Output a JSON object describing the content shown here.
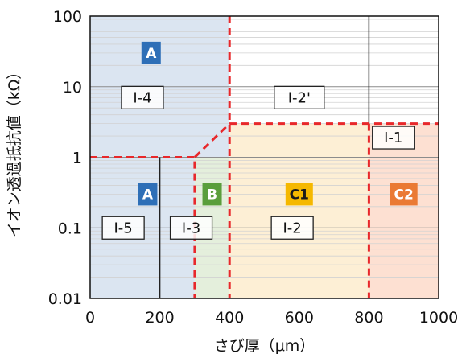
{
  "chart_data": {
    "type": "area",
    "xlabel": "さび厚（μm）",
    "ylabel": "イオン透過抵抗値（kΩ）",
    "xlim": [
      0,
      1000
    ],
    "ylim": [
      0.01,
      100
    ],
    "yscale": "log",
    "x_ticks": [
      "0",
      "200",
      "400",
      "600",
      "800",
      "1000"
    ],
    "y_ticks": [
      "0.01",
      "0.1",
      "1",
      "10",
      "100"
    ],
    "grid": "horizontal",
    "regions": [
      {
        "label": "A",
        "x_range": [
          0,
          400
        ],
        "y_range": [
          1,
          100
        ],
        "color": "#dbe5f1",
        "label_color": "#2e6fb7",
        "label_pos": [
          175,
          30
        ]
      },
      {
        "label": "A",
        "x_range": [
          0,
          300
        ],
        "y_range": [
          0.01,
          1
        ],
        "color": "#dbe5f1",
        "label_color": "#2e6fb7",
        "label_pos": [
          165,
          0.3
        ]
      },
      {
        "label": "B",
        "x_range": [
          300,
          400
        ],
        "y_range": [
          0.01,
          1
        ],
        "color": "#e4efdc",
        "label_color": "#5a9e3c",
        "label_pos": [
          350,
          0.3
        ]
      },
      {
        "label": "C1",
        "x_range": [
          400,
          800
        ],
        "y_range": [
          0.01,
          3
        ],
        "color": "#fdefd5",
        "label_color": "#f5b800",
        "label_pos": [
          600,
          0.3
        ]
      },
      {
        "label": "C2",
        "x_range": [
          800,
          1000
        ],
        "y_range": [
          0.01,
          3
        ],
        "color": "#fde0d2",
        "label_color": "#ea7a34",
        "label_pos": [
          900,
          0.3
        ]
      }
    ],
    "cases": [
      {
        "label": "Ⅰ-4",
        "pos": [
          150,
          7
        ]
      },
      {
        "label": "Ⅰ-2'",
        "pos": [
          600,
          7
        ]
      },
      {
        "label": "Ⅰ-1",
        "pos": [
          870,
          1.9
        ]
      },
      {
        "label": "Ⅰ-5",
        "pos": [
          95,
          0.1
        ]
      },
      {
        "label": "Ⅰ-3",
        "pos": [
          290,
          0.1
        ]
      },
      {
        "label": "Ⅰ-2",
        "pos": [
          580,
          0.1
        ]
      }
    ],
    "boundary_lines": [
      {
        "points": [
          [
            0,
            1
          ],
          [
            300,
            1
          ],
          [
            300,
            0.01
          ]
        ]
      },
      {
        "points": [
          [
            300,
            1
          ],
          [
            400,
            3
          ],
          [
            800,
            3
          ],
          [
            1000,
            3
          ]
        ]
      },
      {
        "points": [
          [
            400,
            100
          ],
          [
            400,
            0.01
          ]
        ]
      },
      {
        "points": [
          [
            800,
            3
          ],
          [
            800,
            0.01
          ]
        ]
      }
    ],
    "solid_lines": [
      {
        "points": [
          [
            200,
            1
          ],
          [
            200,
            0.01
          ]
        ]
      },
      {
        "points": [
          [
            800,
            100
          ],
          [
            800,
            3
          ]
        ]
      }
    ]
  }
}
